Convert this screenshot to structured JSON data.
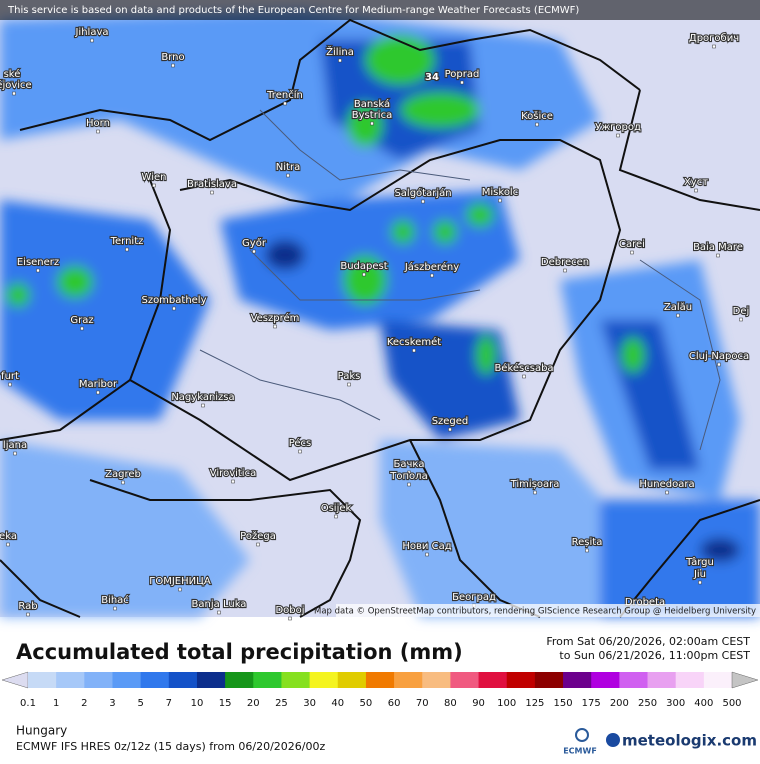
{
  "header": {
    "notice": "This service is based on data and products of the European Centre for Medium-range Weather Forecasts (ECMWF)"
  },
  "map": {
    "max_label": "34",
    "cities": [
      "Jihlava",
      "Brno",
      "Žilina",
      "Poprad",
      "Дрогобич",
      "ské",
      "ějovice",
      "Trenčín",
      "Banská",
      "Bystrica",
      "Košice",
      "Ужгород",
      "Horn",
      "Nitra",
      "Wien",
      "Bratislava",
      "Salgótarján",
      "Miskolc",
      "Хуст",
      "Ternitz",
      "Győr",
      "Budapest",
      "Jászberény",
      "Debrecen",
      "Carei",
      "Baia Mare",
      "Eisenerz",
      "Szombathely",
      "Zalău",
      "Graz",
      "Veszprém",
      "Dej",
      "Kecskemét",
      "Cluj-Napoca",
      "furt",
      "Paks",
      "Békéscsaba",
      "Maribor",
      "Nagykanizsa",
      "Szeged",
      "ljana",
      "Pécs",
      "Zagreb",
      "Virovitica",
      "Бачка",
      "Топола",
      "Timișoara",
      "Hunedoara",
      "Osijek",
      "Požega",
      "eka",
      "Нови Сад",
      "Reșita",
      "Târgu",
      "Jiu",
      "ГОМЈЕНИЦА",
      "Bihać",
      "Banja Luka",
      "Doboj",
      "Београд",
      "Drobeta",
      "Rab"
    ],
    "attribution": "Map data © OpenStreetMap contributors, rendering GIScience Research Group @ Heidelberg University"
  },
  "legend": {
    "title": "Accumulated total precipitation (mm)",
    "period": [
      "From Sat 06/20/2026, 02:00am CEST",
      "to Sun 06/21/2026, 11:00pm CEST"
    ],
    "ticks": [
      0.1,
      1,
      2,
      3,
      5,
      7,
      10,
      15,
      20,
      25,
      30,
      40,
      50,
      60,
      70,
      80,
      90,
      100,
      125,
      150,
      175,
      200,
      250,
      300,
      400,
      500
    ],
    "colors": [
      "#dcdcf0",
      "#c6daf6",
      "#a6c8f8",
      "#82b2f8",
      "#5a9af6",
      "#3078ec",
      "#1452c8",
      "#0c2e8c",
      "#16961a",
      "#2ec82e",
      "#86e020",
      "#f4f420",
      "#e0cc00",
      "#f07a00",
      "#f8a040",
      "#f8bc80",
      "#f05a80",
      "#e01040",
      "#c00000",
      "#8c0000",
      "#6c008c",
      "#b000e0",
      "#d060f0",
      "#e8a0f0",
      "#f8d4f8",
      "#fbf0fb",
      "#c4c4c4"
    ]
  },
  "footer": {
    "region": "Hungary",
    "model": "ECMWF IFS HRES 0z/12z (15 days) from 06/20/2026/00z",
    "brand_left": "ECMWF",
    "brand_right": "meteologix.com"
  }
}
